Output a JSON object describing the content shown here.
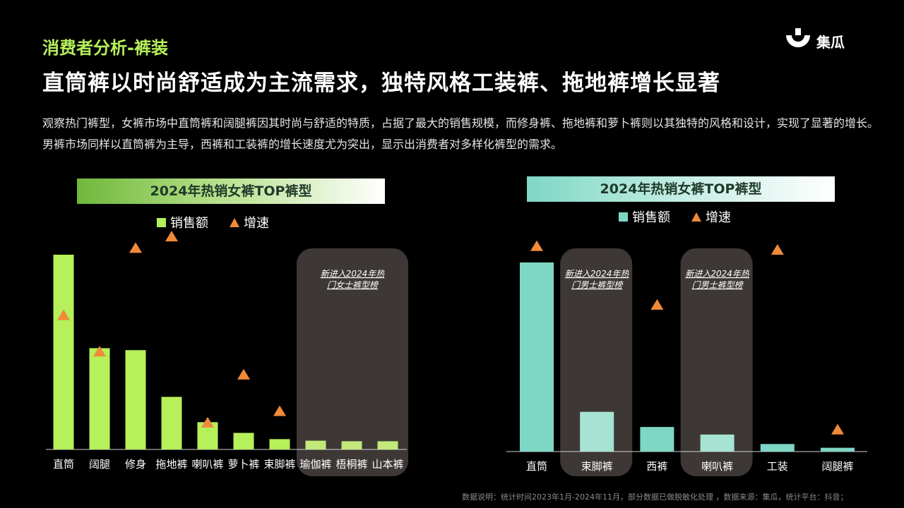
{
  "header": {
    "section_label": "消费者分析-裤装",
    "headline": "直筒裤以时尚舒适成为主流需求，独特风格工装裤、拖地裤增长显著",
    "description": "观察热门裤型，女裤市场中直筒裤和阔腿裤因其时尚与舒适的特质，占据了最大的销售规模，而修身裤、拖地裤和萝卜裤则以其独特的风格和设计，实现了显著的增长。男裤市场同样以直筒裤为主导，西裤和工装裤的增长速度尤为突出，显示出消费者对多样化裤型的需求。"
  },
  "logo": {
    "text": "集瓜",
    "icon": "jigua-logo-icon"
  },
  "footnote": "数据说明：统计时间2023年1月-2024年11月，部分数据已做脱敏化处理 ，数据来源：集瓜，统计平台：抖音；",
  "colors": {
    "accent_green": "#b6f05a",
    "accent_teal": "#7ed7c4",
    "growth_marker": "#f08a3a",
    "highlight_box": "#3d3835"
  },
  "chart_data": [
    {
      "type": "bar",
      "title": "2024年热销女裤TOP裤型",
      "legend": {
        "sales": "销售额",
        "growth": "增速"
      },
      "categories": [
        "直筒",
        "阔腿",
        "修身",
        "拖地裤",
        "喇叭裤",
        "萝卜裤",
        "束脚裤",
        "瑜伽裤",
        "梧桐裤",
        "山本裤"
      ],
      "series": [
        {
          "name": "销售额",
          "values": [
            100,
            52,
            51,
            27,
            14,
            8.5,
            5.3,
            4.5,
            4.2,
            4.2
          ]
        },
        {
          "name": "增速",
          "values": [
            70,
            51,
            105,
            111,
            14,
            39,
            20,
            null,
            null,
            null
          ]
        }
      ],
      "highlight": {
        "label": "新进入2024年热门女士裤型榜",
        "categories": [
          "瑜伽裤",
          "梧桐裤",
          "山本裤"
        ]
      }
    },
    {
      "type": "bar",
      "title": "2024年热销女裤TOP裤型",
      "legend": {
        "sales": "销售额",
        "growth": "增速"
      },
      "categories": [
        "直筒",
        "束脚裤",
        "西裤",
        "喇叭裤",
        "工装",
        "阔腿裤"
      ],
      "series": [
        {
          "name": "销售额",
          "values": [
            100,
            21,
            13,
            9,
            4,
            2
          ]
        },
        {
          "name": "增速",
          "values": [
            112,
            null,
            80,
            null,
            110,
            12
          ]
        }
      ],
      "highlights": [
        {
          "label": "新进入2024年热门男士裤型榜",
          "category": "束脚裤"
        },
        {
          "label": "新进入2024年热门男士裤型榜",
          "category": "喇叭裤"
        }
      ]
    }
  ]
}
